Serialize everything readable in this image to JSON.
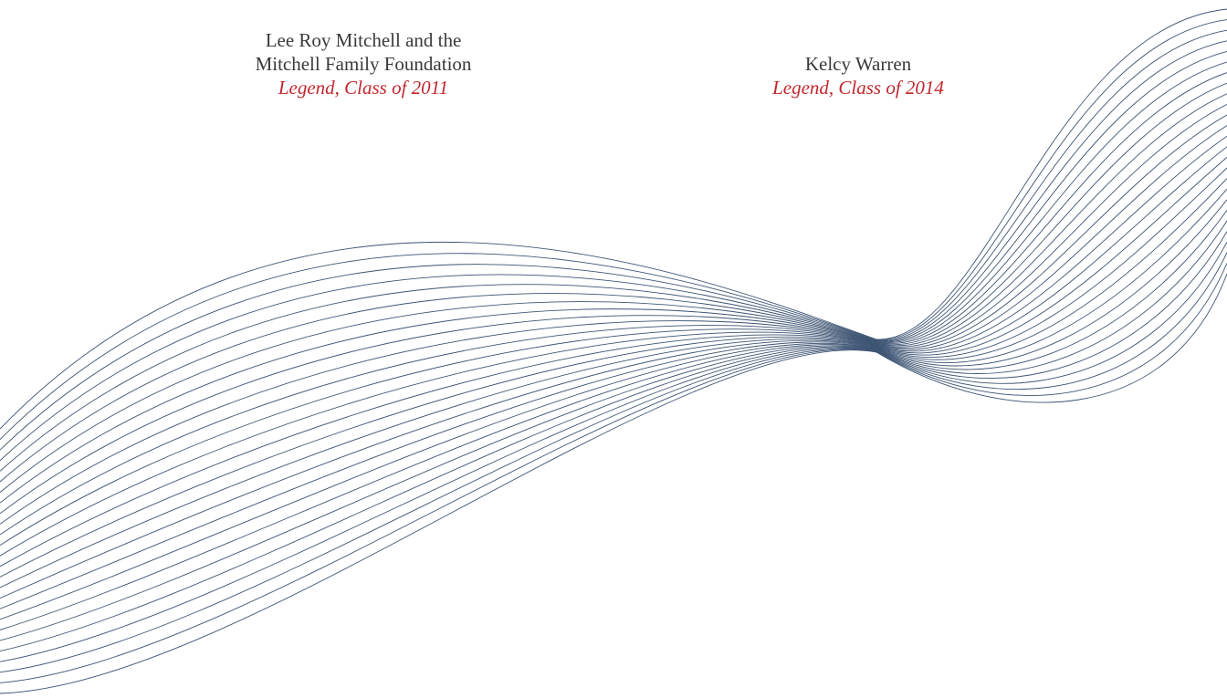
{
  "honorees": [
    {
      "name_lines": [
        "Lee Roy Mitchell and the",
        "Mitchell Family Foundation"
      ],
      "class": "Legend, Class of 2011"
    },
    {
      "name_lines": [
        "Kelcy Warren"
      ],
      "class": "Legend, Class of 2014"
    }
  ]
}
